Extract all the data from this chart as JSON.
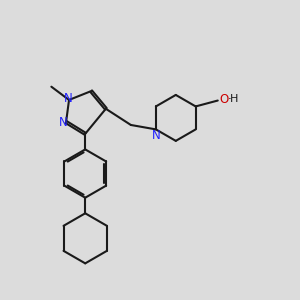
{
  "bg_color": "#dcdcdc",
  "bond_color": "#1a1a1a",
  "N_color": "#2020ff",
  "O_color": "#cc0000",
  "line_width": 1.5,
  "dbo": 0.035,
  "figsize": [
    3.0,
    3.0
  ],
  "dpi": 100,
  "xlim": [
    0,
    10
  ],
  "ylim": [
    0,
    10
  ]
}
